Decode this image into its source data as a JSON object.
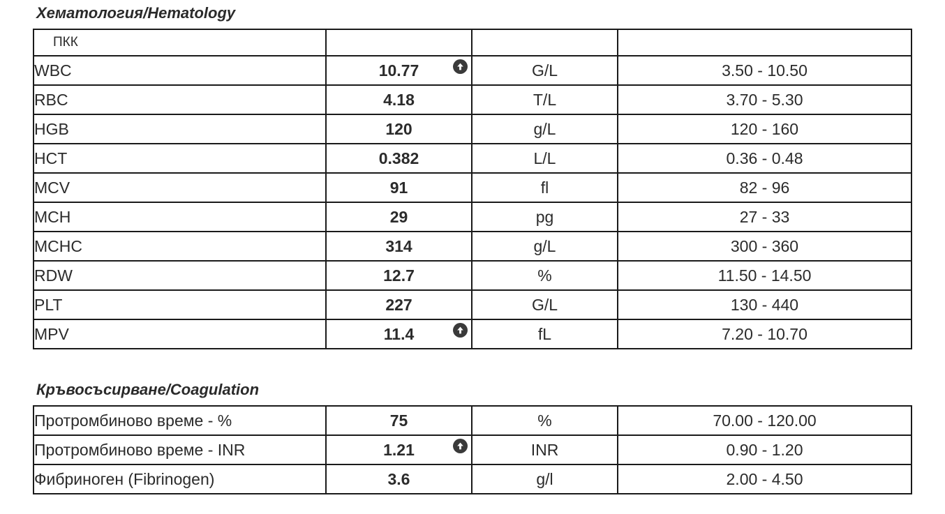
{
  "hematology": {
    "title": "Хематология/Hematology",
    "header_label": "ПКК",
    "rows": [
      {
        "name": "WBC",
        "value": "10.77",
        "unit": "G/L",
        "ref": "3.50 - 10.50",
        "flag": "high"
      },
      {
        "name": "RBC",
        "value": "4.18",
        "unit": "T/L",
        "ref": "3.70 - 5.30",
        "flag": ""
      },
      {
        "name": "HGB",
        "value": "120",
        "unit": "g/L",
        "ref": "120 - 160",
        "flag": ""
      },
      {
        "name": "HCT",
        "value": "0.382",
        "unit": "L/L",
        "ref": "0.36 - 0.48",
        "flag": ""
      },
      {
        "name": "MCV",
        "value": "91",
        "unit": "fl",
        "ref": "82 - 96",
        "flag": ""
      },
      {
        "name": "MCH",
        "value": "29",
        "unit": "pg",
        "ref": "27 - 33",
        "flag": ""
      },
      {
        "name": "MCHC",
        "value": "314",
        "unit": "g/L",
        "ref": "300 - 360",
        "flag": ""
      },
      {
        "name": "RDW",
        "value": "12.7",
        "unit": "%",
        "ref": "11.50 - 14.50",
        "flag": ""
      },
      {
        "name": "PLT",
        "value": "227",
        "unit": "G/L",
        "ref": "130 - 440",
        "flag": ""
      },
      {
        "name": "MPV",
        "value": "11.4",
        "unit": "fL",
        "ref": "7.20 - 10.70",
        "flag": "high"
      }
    ]
  },
  "coagulation": {
    "title": "Кръвосъсирване/Coagulation",
    "rows": [
      {
        "name": "Протромбиново време - %",
        "value": "75",
        "unit": "%",
        "ref": "70.00 - 120.00",
        "flag": ""
      },
      {
        "name": "Протромбиново време - INR",
        "value": "1.21",
        "unit": "INR",
        "ref": "0.90 - 1.20",
        "flag": "high"
      },
      {
        "name": "Фибриноген (Fibrinogen)",
        "value": "3.6",
        "unit": "g/l",
        "ref": "2.00 - 4.50",
        "flag": ""
      }
    ]
  },
  "icons": {
    "high_flag": "arrow-up-circle-icon"
  },
  "colors": {
    "flag_bg": "#3a3a3a",
    "border": "#1a1a1a",
    "text": "#2b2b2b"
  }
}
